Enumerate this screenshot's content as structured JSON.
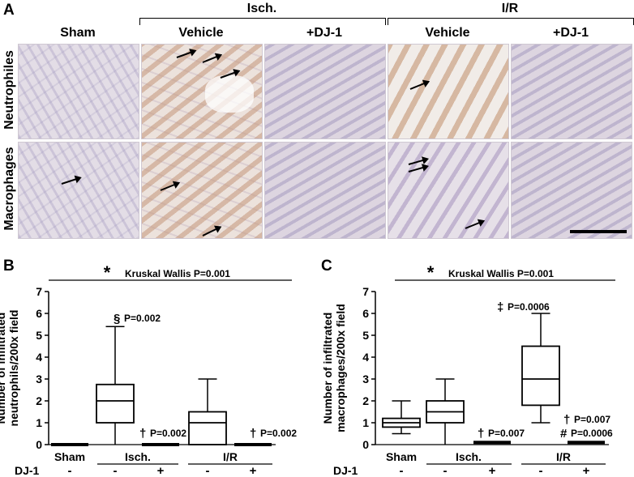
{
  "panel_a": {
    "label": "A",
    "group_isch": "Isch.",
    "group_ir": "I/R",
    "columns": [
      "Sham",
      "Vehicle",
      "+DJ-1",
      "Vehicle",
      "+DJ-1"
    ],
    "rows": [
      "Neutrophiles",
      "Macrophages"
    ]
  },
  "chart_data": [
    {
      "type": "box",
      "panel": "B",
      "ylabel_line1": "Number of infiltrated",
      "ylabel_line2": "neutrophils/200x field",
      "ylim": [
        0,
        7
      ],
      "yticks": [
        "0",
        "1",
        "2",
        "3",
        "4",
        "5",
        "6",
        "7"
      ],
      "test_star": "*",
      "test_text": "Kruskal Wallis P=0.001",
      "categories": [
        "Sham",
        "Isch.",
        "I/R"
      ],
      "dj1_label": "DJ-1",
      "dj1_values": [
        "-",
        "-",
        "+",
        "-",
        "+"
      ],
      "boxes": [
        {
          "min": 0,
          "q1": 0,
          "median": 0,
          "q3": 0,
          "max": 0
        },
        {
          "min": 0,
          "q1": 1,
          "median": 2,
          "q3": 2.75,
          "max": 5.4
        },
        {
          "min": 0,
          "q1": 0,
          "median": 0,
          "q3": 0,
          "max": 0
        },
        {
          "min": 0,
          "q1": 0,
          "median": 1,
          "q3": 1.5,
          "max": 3
        },
        {
          "min": 0,
          "q1": 0,
          "median": 0,
          "q3": 0,
          "max": 0
        }
      ],
      "annotations": [
        {
          "symbol": "§",
          "text": "P=0.002"
        },
        {
          "symbol": "†",
          "text": "P=0.002"
        },
        {
          "symbol": "†",
          "text": "P=0.002"
        }
      ]
    },
    {
      "type": "box",
      "panel": "C",
      "ylabel_line1": "Number of infiltrated",
      "ylabel_line2": "macrophages/200x field",
      "ylim": [
        0,
        7
      ],
      "yticks": [
        "0",
        "1",
        "2",
        "3",
        "4",
        "5",
        "6",
        "7"
      ],
      "test_star": "*",
      "test_text": "Kruskal Wallis P=0.001",
      "categories": [
        "Sham",
        "Isch.",
        "I/R"
      ],
      "dj1_label": "DJ-1",
      "dj1_values": [
        "-",
        "-",
        "+",
        "-",
        "+"
      ],
      "boxes": [
        {
          "min": 0.5,
          "q1": 0.8,
          "median": 1,
          "q3": 1.2,
          "max": 2
        },
        {
          "min": 0,
          "q1": 1,
          "median": 1.5,
          "q3": 2,
          "max": 3
        },
        {
          "min": 0,
          "q1": 0.05,
          "median": 0.1,
          "q3": 0.15,
          "max": 0.2
        },
        {
          "min": 1,
          "q1": 1.8,
          "median": 3,
          "q3": 4.5,
          "max": 6
        },
        {
          "min": 0,
          "q1": 0.05,
          "median": 0.1,
          "q3": 0.15,
          "max": 0.2
        }
      ],
      "annotations": [
        {
          "symbol": "‡",
          "text": "P=0.0006"
        },
        {
          "symbol": "†",
          "text": "P=0.007"
        },
        {
          "symbol": "†",
          "text": "P=0.007"
        },
        {
          "symbol": "#",
          "text": "P=0.0006"
        }
      ]
    }
  ]
}
